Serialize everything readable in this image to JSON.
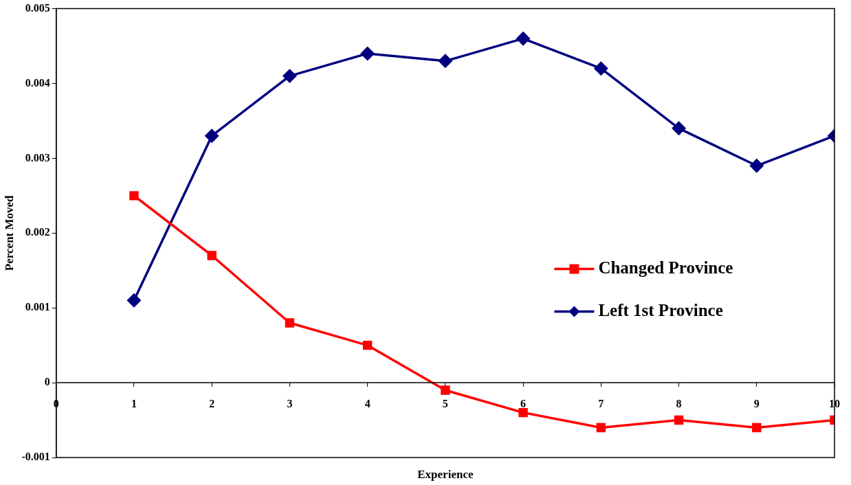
{
  "chart_data": {
    "type": "line",
    "xlabel": "Experience",
    "ylabel": "Percent Moved",
    "x": [
      1,
      2,
      3,
      4,
      5,
      6,
      7,
      8,
      9,
      10
    ],
    "xlim": [
      0,
      10
    ],
    "xticks": [
      0,
      1,
      2,
      3,
      4,
      5,
      6,
      7,
      8,
      9,
      10
    ],
    "ylim": [
      -0.001,
      0.005
    ],
    "yticks": [
      -0.001,
      0,
      0.001,
      0.002,
      0.003,
      0.004,
      0.005
    ],
    "grid": false,
    "legend": "right",
    "line_style": "solid",
    "series": [
      {
        "name": "Changed Province",
        "color": "#ff0000",
        "marker": "square",
        "values": [
          0.0025,
          0.0017,
          0.0008,
          0.0005,
          -0.0001,
          -0.0004,
          -0.0006,
          -0.0005,
          -0.0006,
          -0.0005
        ]
      },
      {
        "name": "Left 1st Province",
        "color": "#000080",
        "marker": "diamond",
        "values": [
          0.0011,
          0.0033,
          0.0041,
          0.0044,
          0.0043,
          0.0046,
          0.0042,
          0.0034,
          0.0029,
          0.0033
        ]
      }
    ]
  }
}
